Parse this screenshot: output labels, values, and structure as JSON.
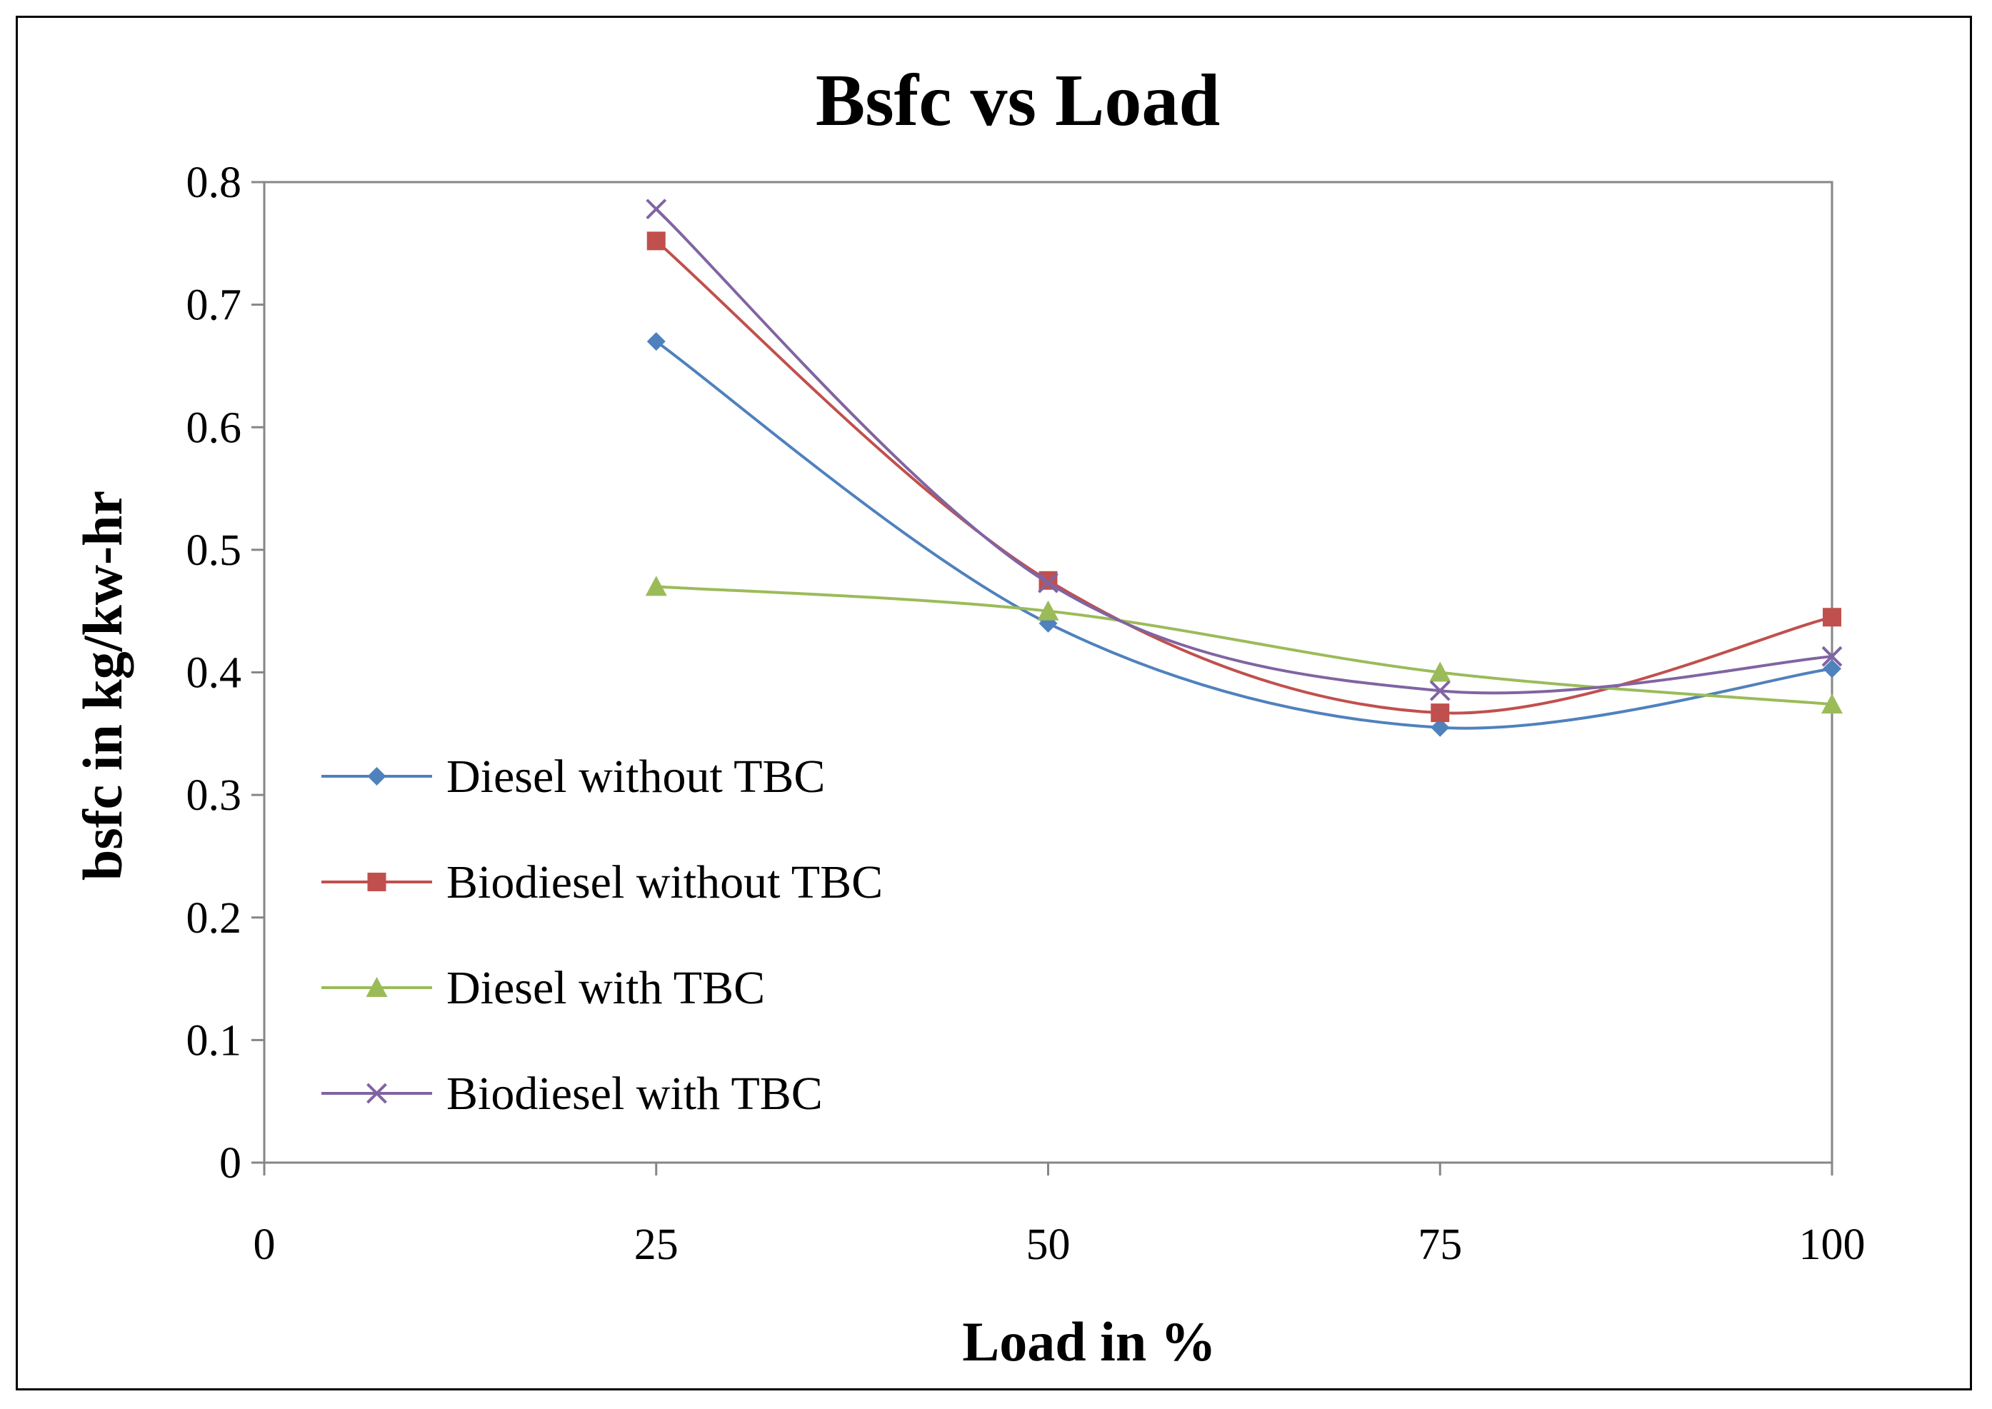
{
  "chart_data": {
    "type": "line",
    "title": "Bsfc  vs Load",
    "xlabel": "Load in %",
    "ylabel": "bsfc in kg/kw-hr",
    "x_ticks": [
      "0",
      "25",
      "50",
      "75",
      "100"
    ],
    "y_ticks": [
      "0",
      "0.1",
      "0.2",
      "0.3",
      "0.4",
      "0.5",
      "0.6",
      "0.7",
      "0.8"
    ],
    "xlim": [
      0,
      100
    ],
    "ylim": [
      0,
      0.8
    ],
    "grid": false,
    "smoothed": true,
    "legend_position": "left",
    "x": [
      25,
      50,
      75,
      100
    ],
    "series": [
      {
        "name": "Diesel without TBC",
        "values": [
          0.67,
          0.44,
          0.355,
          0.403
        ],
        "color": "#4f81bd",
        "marker": "diamond"
      },
      {
        "name": "Biodiesel without TBC",
        "values": [
          0.752,
          0.475,
          0.367,
          0.445
        ],
        "color": "#c0504d",
        "marker": "square"
      },
      {
        "name": "Diesel with TBC",
        "values": [
          0.47,
          0.45,
          0.4,
          0.374
        ],
        "color": "#9bbb59",
        "marker": "triangle"
      },
      {
        "name": "Biodiesel with TBC",
        "values": [
          0.778,
          0.473,
          0.385,
          0.413
        ],
        "color": "#8064a2",
        "marker": "x"
      }
    ]
  }
}
